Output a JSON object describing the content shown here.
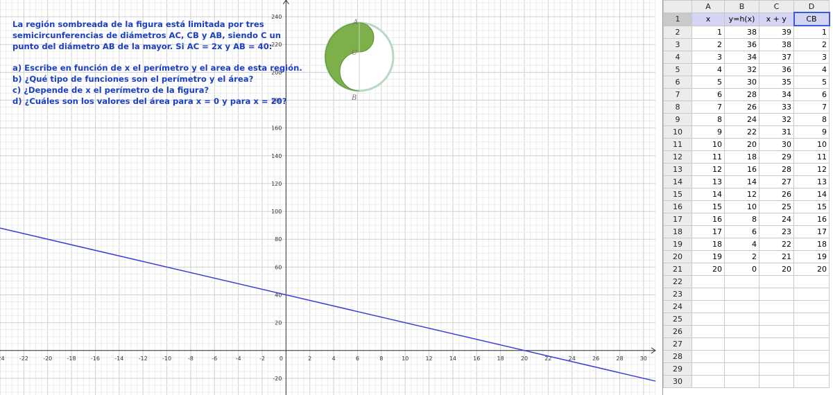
{
  "problem": {
    "lines": [
      "La región sombreada de la figura está limitada por tres",
      "semicircunferencias de diámetros AC, CB y AB, siendo C un",
      "punto del diámetro AB de la mayor. Si AC = 2x y AB = 40:",
      "",
      "a) Escribe en función de x el perímetro y el area de esta región.",
      "b) ¿Qué tipo de funciones son el perímetro y el área?",
      "c) ¿Depende de x el perímetro de la figura?",
      "d) ¿Cuáles son los valores del área para x = 0 y para x = 20?"
    ]
  },
  "figure": {
    "labels": [
      "A",
      "C",
      "B"
    ],
    "shade_color": "#7db04a"
  },
  "colors": {
    "line": "#3b3bd8",
    "text": "#1a3fc4",
    "grid_minor": "#ececec",
    "grid_major": "#cfcfcf"
  },
  "chart_data": {
    "type": "line",
    "xlim": [
      -24,
      31
    ],
    "ylim": [
      -32,
      252
    ],
    "x_ticks": [
      -24,
      -22,
      -20,
      -18,
      -16,
      -14,
      -12,
      -10,
      -8,
      -6,
      -4,
      -2,
      0,
      2,
      4,
      6,
      8,
      10,
      12,
      14,
      16,
      18,
      20,
      22,
      24,
      26,
      28,
      30
    ],
    "y_ticks": [
      -20,
      20,
      40,
      60,
      80,
      100,
      120,
      140,
      160,
      180,
      200,
      220,
      240
    ],
    "grid": true,
    "series": [
      {
        "x": [
          -24,
          31
        ],
        "y": [
          88,
          -22
        ]
      }
    ]
  },
  "spreadsheet": {
    "columns": [
      "A",
      "B",
      "C",
      "D"
    ],
    "header_row": [
      "x",
      "y=h(x)",
      "x + y",
      "CB"
    ],
    "rows": [
      [
        1,
        38,
        39,
        1
      ],
      [
        2,
        36,
        38,
        2
      ],
      [
        3,
        34,
        37,
        3
      ],
      [
        4,
        32,
        36,
        4
      ],
      [
        5,
        30,
        35,
        5
      ],
      [
        6,
        28,
        34,
        6
      ],
      [
        7,
        26,
        33,
        7
      ],
      [
        8,
        24,
        32,
        8
      ],
      [
        9,
        22,
        31,
        9
      ],
      [
        10,
        20,
        30,
        10
      ],
      [
        11,
        18,
        29,
        11
      ],
      [
        12,
        16,
        28,
        12
      ],
      [
        13,
        14,
        27,
        13
      ],
      [
        14,
        12,
        26,
        14
      ],
      [
        15,
        10,
        25,
        15
      ],
      [
        16,
        8,
        24,
        16
      ],
      [
        17,
        6,
        23,
        17
      ],
      [
        18,
        4,
        22,
        18
      ],
      [
        19,
        2,
        21,
        19
      ],
      [
        20,
        0,
        20,
        20
      ]
    ],
    "row_numbers": [
      1,
      2,
      3,
      4,
      5,
      6,
      7,
      8,
      9,
      10,
      11,
      12,
      13,
      14,
      15,
      16,
      17,
      18,
      19,
      20,
      21,
      22,
      23,
      24,
      25,
      26,
      27,
      28,
      29,
      30
    ]
  }
}
